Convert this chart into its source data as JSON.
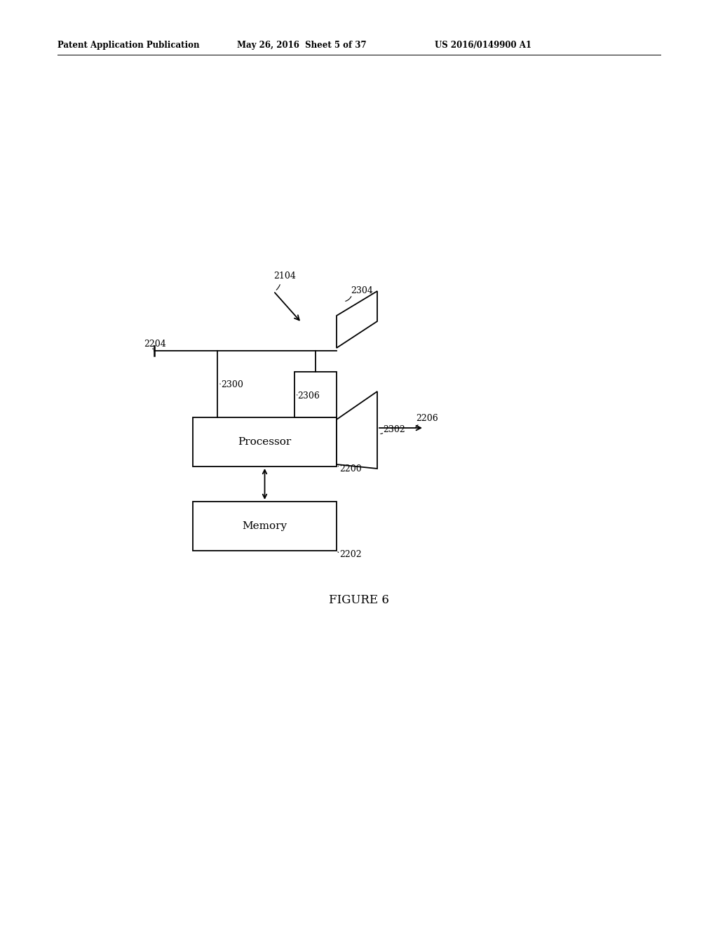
{
  "bg_color": "#ffffff",
  "header_left": "Patent Application Publication",
  "header_mid": "May 26, 2016  Sheet 5 of 37",
  "header_right": "US 2016/0149900 A1",
  "figure_label": "FIGURE 6",
  "processor_label": "Processor",
  "memory_label": "Memory",
  "line_width": 1.3
}
